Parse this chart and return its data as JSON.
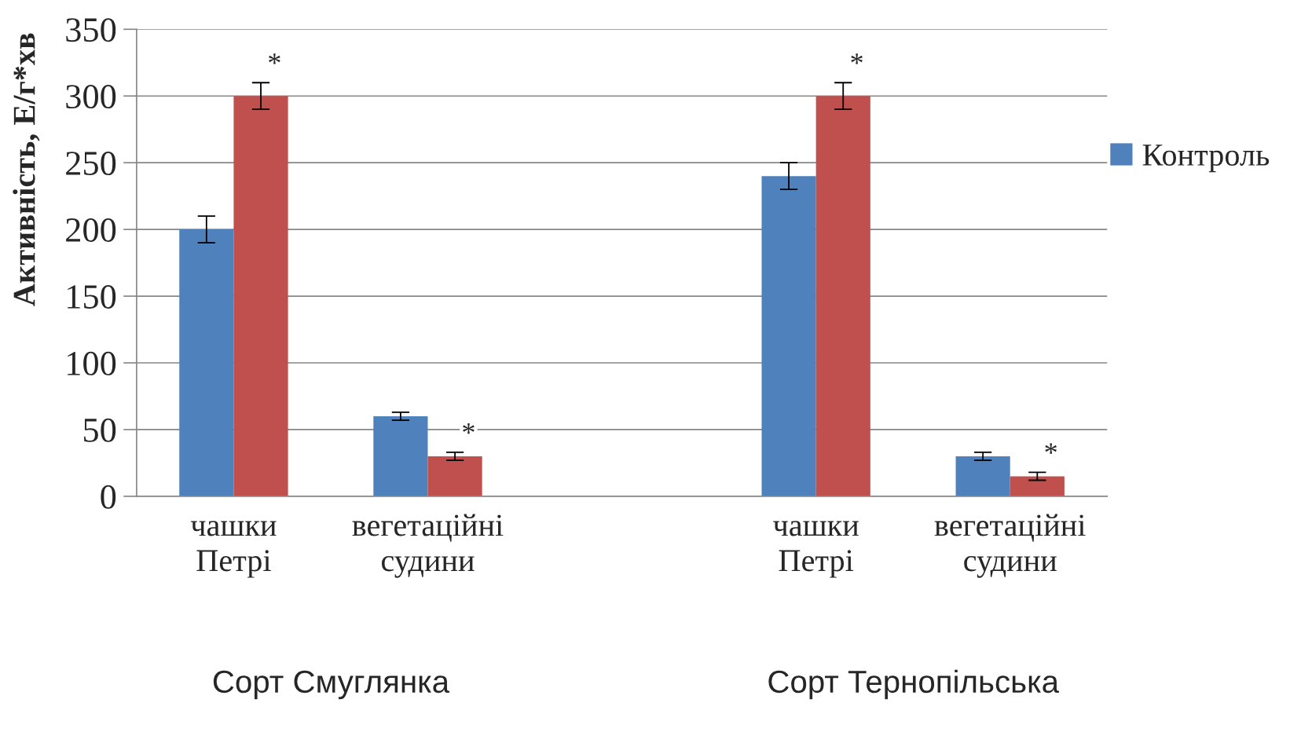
{
  "chart_data": {
    "type": "bar",
    "ylabel": "Активність, Е/г*хв",
    "categories": [
      "чашки\nПетрі",
      "вегетаційні\nсудини",
      null,
      "чашки\nПетрі",
      "вегетаційні\nсудини"
    ],
    "series": [
      {
        "name": "Контроль",
        "color": "#4f81bd",
        "values": [
          200,
          60,
          null,
          240,
          30
        ],
        "errors": [
          10,
          3,
          null,
          10,
          3
        ]
      },
      {
        "color": "#c0504d",
        "values": [
          300,
          30,
          null,
          300,
          15
        ],
        "errors": [
          10,
          3,
          null,
          10,
          3
        ],
        "value_labels": [
          "*",
          "*",
          null,
          "*",
          "*"
        ]
      }
    ],
    "ylim": [
      0,
      350
    ],
    "yticks": [
      0,
      50,
      100,
      150,
      200,
      250,
      300,
      350
    ],
    "grid": "y",
    "legend": "right",
    "annotations": [
      "Сорт Смуглянка",
      "Сорт Тернопільська"
    ]
  }
}
